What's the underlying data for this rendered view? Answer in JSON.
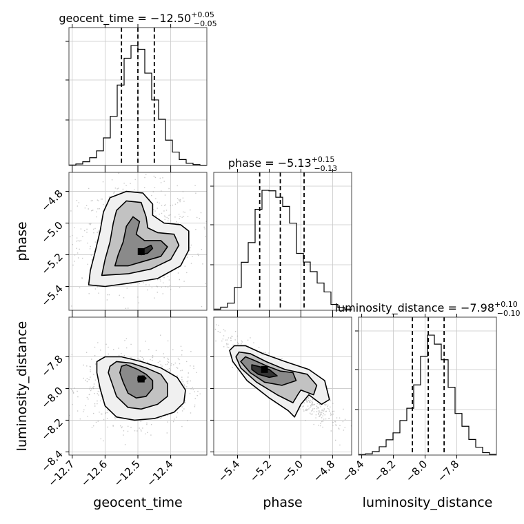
{
  "chart_data": {
    "type": "corner",
    "parameters": [
      "geocent_time",
      "phase",
      "luminosity_distance"
    ],
    "ranges": {
      "geocent_time": [
        -12.71,
        -12.29
      ],
      "phase": [
        -5.55,
        -4.68
      ],
      "luminosity_distance": [
        -8.42,
        -7.55
      ]
    },
    "axis_ticks": {
      "geocent_time": [
        -12.7,
        -12.6,
        -12.5,
        -12.4
      ],
      "phase": [
        -5.4,
        -5.2,
        -5.0,
        -4.8
      ],
      "luminosity_distance": [
        -8.4,
        -8.2,
        -8.0,
        -7.8
      ]
    },
    "tick_labels": {
      "geocent_time": [
        "−12.7",
        "−12.6",
        "−12.5",
        "−12.4"
      ],
      "phase": [
        "−5.4",
        "−5.2",
        "−5.0",
        "−4.8"
      ],
      "luminosity_distance": [
        "−8.4",
        "−8.2",
        "−8.0",
        "−7.8"
      ]
    },
    "titles": {
      "geocent_time": {
        "lead": "geocent_time = −12.50",
        "plus": "+0.05",
        "minus": "−0.05"
      },
      "phase": {
        "lead": "phase = −5.13",
        "plus": "+0.15",
        "minus": "−0.13"
      },
      "luminosity_distance": {
        "lead": "luminosity_distance = −7.98",
        "plus": "+0.10",
        "minus": "−0.10"
      }
    },
    "quantiles": {
      "geocent_time": [
        -12.55,
        -12.5,
        -12.45
      ],
      "phase": [
        -5.26,
        -5.13,
        -4.98
      ],
      "luminosity_distance": [
        -8.08,
        -7.98,
        -7.88
      ]
    },
    "histograms": {
      "geocent_time": {
        "edges_range": [
          -12.71,
          -12.29
        ],
        "bins": 20,
        "counts": [
          0.3,
          1.0,
          2.5,
          5.2,
          9.8,
          18.5,
          33.0,
          54.0,
          72.0,
          80.5,
          78.0,
          62.0,
          44.0,
          31.0,
          17.0,
          9.0,
          4.0,
          1.5,
          0.6,
          0.2
        ]
      },
      "phase": {
        "edges_range": [
          -5.55,
          -4.68
        ],
        "bins": 20,
        "counts": [
          0.5,
          1.4,
          3.2,
          10.2,
          21.5,
          30.3,
          45.2,
          53.7,
          53.5,
          50.6,
          46.5,
          39.0,
          25.5,
          21.6,
          17.3,
          12.2,
          8.2,
          2.6,
          1.2,
          0.5
        ]
      },
      "luminosity_distance": {
        "edges_range": [
          -8.42,
          -7.55
        ],
        "bins": 20,
        "counts": [
          0.3,
          0.7,
          2.0,
          4.8,
          8.8,
          12.8,
          19.9,
          27.0,
          40.5,
          57.0,
          69.2,
          64.0,
          55.0,
          39.1,
          24.0,
          16.6,
          9.0,
          4.5,
          1.4,
          0.4
        ]
      }
    },
    "pairs": [
      {
        "x": "geocent_time",
        "y": "phase",
        "density_peak": [
          -12.49,
          -5.18
        ],
        "contours": [
          [
            [
              -12.49,
              -5.19
            ],
            [
              -12.48,
              -5.16
            ],
            [
              -12.46,
              -5.14
            ],
            [
              -12.455,
              -5.16
            ],
            [
              -12.47,
              -5.19
            ],
            [
              -12.49,
              -5.2
            ]
          ],
          [
            [
              -12.57,
              -5.27
            ],
            [
              -12.56,
              -5.2
            ],
            [
              -12.545,
              -5.12
            ],
            [
              -12.535,
              -5.02
            ],
            [
              -12.515,
              -4.96
            ],
            [
              -12.495,
              -4.99
            ],
            [
              -12.505,
              -5.07
            ],
            [
              -12.48,
              -5.11
            ],
            [
              -12.43,
              -5.11
            ],
            [
              -12.41,
              -5.15
            ],
            [
              -12.43,
              -5.21
            ],
            [
              -12.48,
              -5.24
            ],
            [
              -12.53,
              -5.27
            ]
          ],
          [
            [
              -12.61,
              -5.33
            ],
            [
              -12.6,
              -5.23
            ],
            [
              -12.585,
              -5.12
            ],
            [
              -12.575,
              -5.0
            ],
            [
              -12.565,
              -4.92
            ],
            [
              -12.535,
              -4.86
            ],
            [
              -12.49,
              -4.87
            ],
            [
              -12.475,
              -4.96
            ],
            [
              -12.47,
              -5.03
            ],
            [
              -12.44,
              -5.06
            ],
            [
              -12.39,
              -5.07
            ],
            [
              -12.375,
              -5.14
            ],
            [
              -12.4,
              -5.23
            ],
            [
              -12.46,
              -5.29
            ],
            [
              -12.53,
              -5.32
            ]
          ],
          [
            [
              -12.65,
              -5.39
            ],
            [
              -12.645,
              -5.3
            ],
            [
              -12.63,
              -5.18
            ],
            [
              -12.615,
              -5.05
            ],
            [
              -12.605,
              -4.93
            ],
            [
              -12.585,
              -4.84
            ],
            [
              -12.535,
              -4.8
            ],
            [
              -12.485,
              -4.81
            ],
            [
              -12.455,
              -4.88
            ],
            [
              -12.455,
              -4.95
            ],
            [
              -12.42,
              -5.0
            ],
            [
              -12.37,
              -5.01
            ],
            [
              -12.345,
              -5.05
            ],
            [
              -12.345,
              -5.17
            ],
            [
              -12.37,
              -5.27
            ],
            [
              -12.44,
              -5.35
            ],
            [
              -12.53,
              -5.38
            ],
            [
              -12.6,
              -5.4
            ]
          ]
        ]
      },
      {
        "x": "geocent_time",
        "y": "luminosity_distance",
        "density_peak": [
          -12.49,
          -7.94
        ],
        "contours": [
          [
            [
              -12.5,
              -7.93
            ],
            [
              -12.485,
              -7.92
            ],
            [
              -12.475,
              -7.935
            ],
            [
              -12.485,
              -7.955
            ],
            [
              -12.5,
              -7.95
            ]
          ],
          [
            [
              -12.55,
              -7.86
            ],
            [
              -12.535,
              -7.85
            ],
            [
              -12.5,
              -7.88
            ],
            [
              -12.475,
              -7.91
            ],
            [
              -12.455,
              -7.95
            ],
            [
              -12.455,
              -8.0
            ],
            [
              -12.475,
              -8.05
            ],
            [
              -12.505,
              -8.06
            ],
            [
              -12.53,
              -8.03
            ],
            [
              -12.545,
              -7.96
            ],
            [
              -12.555,
              -7.9
            ]
          ],
          [
            [
              -12.585,
              -7.86
            ],
            [
              -12.565,
              -7.83
            ],
            [
              -12.52,
              -7.84
            ],
            [
              -12.475,
              -7.87
            ],
            [
              -12.43,
              -7.91
            ],
            [
              -12.41,
              -7.97
            ],
            [
              -12.41,
              -8.05
            ],
            [
              -12.44,
              -8.1
            ],
            [
              -12.49,
              -8.13
            ],
            [
              -12.53,
              -8.12
            ],
            [
              -12.565,
              -8.05
            ],
            [
              -12.58,
              -7.96
            ],
            [
              -12.59,
              -7.9
            ]
          ],
          [
            [
              -12.625,
              -7.83
            ],
            [
              -12.6,
              -7.8
            ],
            [
              -12.55,
              -7.8
            ],
            [
              -12.49,
              -7.83
            ],
            [
              -12.43,
              -7.87
            ],
            [
              -12.38,
              -7.93
            ],
            [
              -12.355,
              -8.01
            ],
            [
              -12.36,
              -8.09
            ],
            [
              -12.39,
              -8.15
            ],
            [
              -12.45,
              -8.19
            ],
            [
              -12.51,
              -8.2
            ],
            [
              -12.565,
              -8.18
            ],
            [
              -12.6,
              -8.11
            ],
            [
              -12.615,
              -8.0
            ],
            [
              -12.625,
              -7.9
            ]
          ]
        ]
      },
      {
        "x": "phase",
        "y": "luminosity_distance",
        "density_peak": [
          -5.23,
          -7.88
        ],
        "contours": [
          [
            [
              -5.31,
              -7.85
            ],
            [
              -5.27,
              -7.86
            ],
            [
              -5.2,
              -7.88
            ],
            [
              -5.15,
              -7.92
            ],
            [
              -5.2,
              -7.93
            ],
            [
              -5.27,
              -7.91
            ],
            [
              -5.31,
              -7.88
            ]
          ],
          [
            [
              -5.35,
              -7.8
            ],
            [
              -5.3,
              -7.82
            ],
            [
              -5.21,
              -7.86
            ],
            [
              -5.13,
              -7.89
            ],
            [
              -5.05,
              -7.9
            ],
            [
              -5.03,
              -7.95
            ],
            [
              -5.12,
              -7.98
            ],
            [
              -5.23,
              -7.96
            ],
            [
              -5.32,
              -7.9
            ],
            [
              -5.38,
              -7.83
            ]
          ],
          [
            [
              -5.39,
              -7.77
            ],
            [
              -5.32,
              -7.78
            ],
            [
              -5.22,
              -7.83
            ],
            [
              -5.1,
              -7.88
            ],
            [
              -4.96,
              -7.91
            ],
            [
              -4.9,
              -7.98
            ],
            [
              -4.92,
              -8.04
            ],
            [
              -5.0,
              -8.01
            ],
            [
              -5.02,
              -8.04
            ],
            [
              -5.05,
              -8.09
            ],
            [
              -5.15,
              -8.04
            ],
            [
              -5.28,
              -7.96
            ],
            [
              -5.38,
              -7.87
            ],
            [
              -5.41,
              -7.8
            ]
          ],
          [
            [
              -5.42,
              -7.73
            ],
            [
              -5.35,
              -7.73
            ],
            [
              -5.24,
              -7.78
            ],
            [
              -5.1,
              -7.83
            ],
            [
              -4.95,
              -7.88
            ],
            [
              -4.85,
              -7.95
            ],
            [
              -4.82,
              -8.07
            ],
            [
              -4.87,
              -8.1
            ],
            [
              -4.95,
              -8.04
            ],
            [
              -5.0,
              -8.1
            ],
            [
              -5.04,
              -8.18
            ],
            [
              -5.08,
              -8.14
            ],
            [
              -5.2,
              -8.06
            ],
            [
              -5.34,
              -7.95
            ],
            [
              -5.43,
              -7.83
            ],
            [
              -5.45,
              -7.76
            ]
          ]
        ]
      }
    ]
  }
}
